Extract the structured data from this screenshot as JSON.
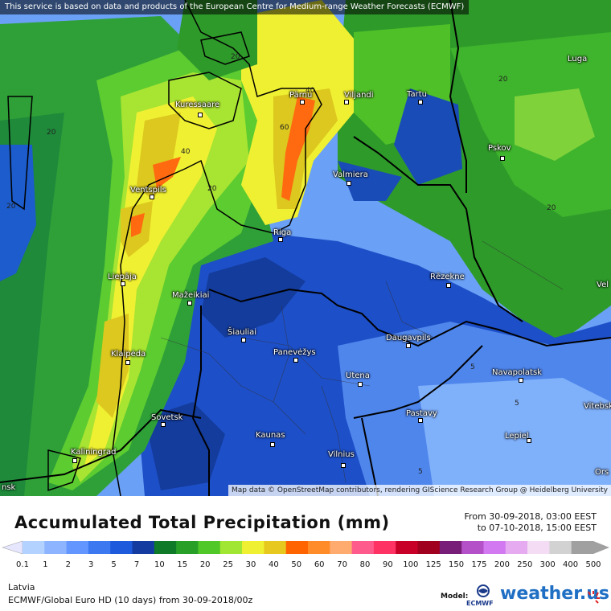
{
  "banner": "This service is based on data and products of the European Centre for Medium-range Weather Forecasts (ECMWF)",
  "attribution": "Map data © OpenStreetMap contributors, rendering GIScience Research Group @ Heidelberg University",
  "title": "Accumulated Total Precipitation (mm)",
  "period": {
    "from": "From 30-09-2018, 03:00 EEST",
    "to": "to 07-10-2018, 15:00 EEST"
  },
  "region": "Latvia",
  "model_info": "ECMWF/Global Euro HD (10 days) from 30-09-2018/00z",
  "model_label": "Model:",
  "ecmwf_logo_text": "ECMWF",
  "brand": "weather.us",
  "cities": {
    "kuressaare": "Kuressaare",
    "parnu": "Pärnu",
    "viljandi": "Viljandi",
    "tartu": "Tartu",
    "luga": "Luga",
    "pskov": "Pskov",
    "valmiera": "Valmiera",
    "ventspils": "Ventspils",
    "riga": "Riga",
    "rezekne": "Rēzekne",
    "liepaja": "Liepāja",
    "mazeikiai": "Mažeikiai",
    "siauliai": "Šiauliai",
    "panevezys": "Panevėžys",
    "daugavpils": "Daugavpils",
    "klaipeda": "Klaipėda",
    "utena": "Utena",
    "navapolatsk": "Navapolatsk",
    "vitebsk": "Vitebsk",
    "sovetsk": "Sovetsk",
    "pastavy": "Pastavy",
    "kaunas": "Kaunas",
    "lepiel": "Lepiel",
    "kaliningrad": "Kaliningrad",
    "vilnius": "Vilnius",
    "edge_left": "nsk",
    "edge_right_top": "Vel",
    "edge_right_bottom": "Ors"
  },
  "contour_labels": [
    "20",
    "20",
    "20",
    "20",
    "20",
    "20",
    "40",
    "40",
    "60",
    "5",
    "5",
    "5"
  ],
  "legend": {
    "ticks": [
      "0.1",
      "1",
      "2",
      "3",
      "5",
      "7",
      "10",
      "15",
      "20",
      "25",
      "30",
      "40",
      "50",
      "60",
      "70",
      "80",
      "90",
      "100",
      "125",
      "150",
      "175",
      "200",
      "250",
      "300",
      "400",
      "500"
    ],
    "colors": [
      "#e6e6ff",
      "#b4d2ff",
      "#8cb4ff",
      "#6496ff",
      "#3c78f0",
      "#1e5adc",
      "#143ca0",
      "#0f7a28",
      "#28a028",
      "#50c828",
      "#a0e632",
      "#f0f032",
      "#e6c81e",
      "#ff6400",
      "#ff8c28",
      "#ffaa6e",
      "#ff5a8c",
      "#ff3264",
      "#c80028",
      "#a0001e",
      "#781e78",
      "#b450c8",
      "#d278f0",
      "#e6aaf0",
      "#f5dcf5",
      "#d2d2d2",
      "#a0a0a0"
    ]
  }
}
